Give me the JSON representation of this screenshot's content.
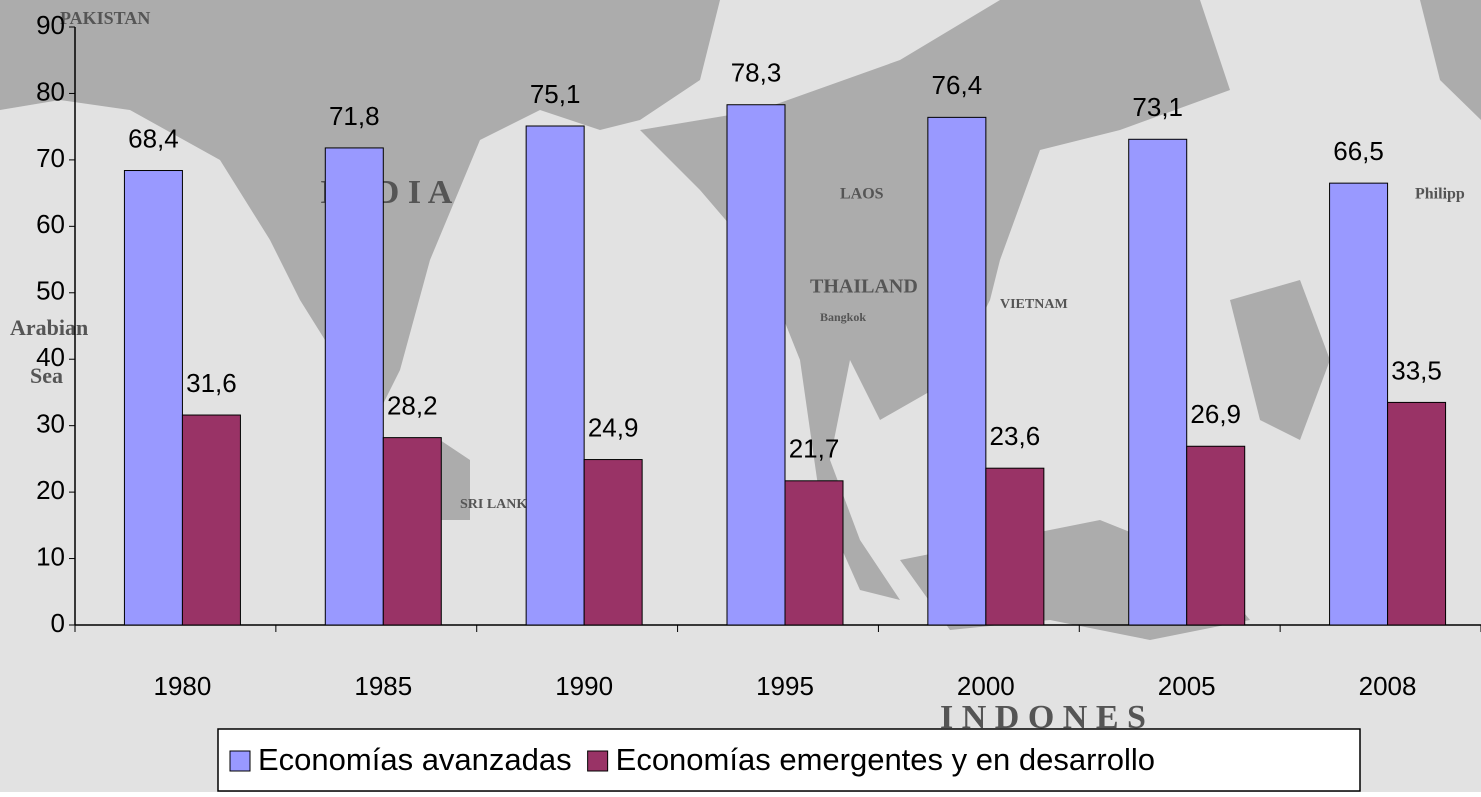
{
  "chart_data": {
    "type": "bar",
    "categories": [
      "1980",
      "1985",
      "1990",
      "1995",
      "2000",
      "2005",
      "2008"
    ],
    "series": [
      {
        "name": "Economías avanzadas",
        "color": "#9999ff",
        "values": [
          68.4,
          71.8,
          75.1,
          78.3,
          76.4,
          73.1,
          66.5
        ],
        "value_labels": [
          "68,4",
          "71,8",
          "75,1",
          "78,3",
          "76,4",
          "73,1",
          "66,5"
        ]
      },
      {
        "name": "Economías emergentes y en desarrollo",
        "color": "#993366",
        "values": [
          31.6,
          28.2,
          24.9,
          21.7,
          23.6,
          26.9,
          33.5
        ],
        "value_labels": [
          "31,6",
          "28,2",
          "24,9",
          "21,7",
          "23,6",
          "26,9",
          "33,5"
        ]
      }
    ],
    "ylim": [
      0,
      90
    ],
    "yticks": [
      0,
      10,
      20,
      30,
      40,
      50,
      60,
      70,
      80,
      90
    ],
    "legend": "bottom",
    "background_labels": [
      "PAKISTAN",
      "I N D I A",
      "Arabian",
      "Sea",
      "LAOS",
      "THAILAND",
      "VIETNAM",
      "SRI LANKA",
      "Bangkok",
      "I   N   D   O   N   E   S",
      "Philipp"
    ]
  }
}
